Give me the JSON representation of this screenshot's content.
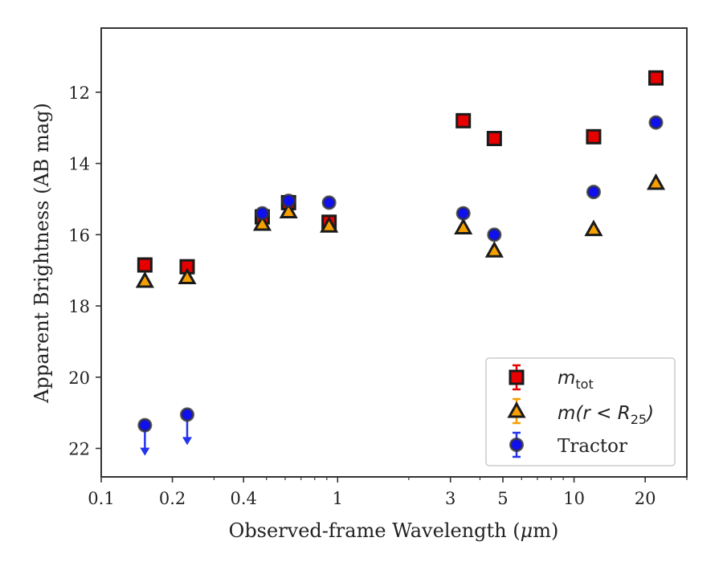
{
  "chart_data": {
    "type": "scatter",
    "title": "",
    "xlabel_main": "Observed-frame Wavelength (",
    "xlabel_mu": "μ",
    "xlabel_tail": "m)",
    "ylabel": "Apparent Brightness (AB mag)",
    "x_scale": "log",
    "xlim": [
      0.1,
      30
    ],
    "ylim": [
      22.8,
      10.2
    ],
    "y_inverted": true,
    "grid": false,
    "legend_position": "lower-right",
    "x_ticks": [
      {
        "value": 0.1,
        "label": "0.1"
      },
      {
        "value": 0.2,
        "label": "0.2"
      },
      {
        "value": 0.4,
        "label": "0.4"
      },
      {
        "value": 1,
        "label": "1"
      },
      {
        "value": 3,
        "label": "3"
      },
      {
        "value": 5,
        "label": "5"
      },
      {
        "value": 10,
        "label": "10"
      },
      {
        "value": 20,
        "label": "20"
      }
    ],
    "y_ticks": [
      {
        "value": 12,
        "label": "12"
      },
      {
        "value": 14,
        "label": "14"
      },
      {
        "value": 16,
        "label": "16"
      },
      {
        "value": 18,
        "label": "18"
      },
      {
        "value": 20,
        "label": "20"
      },
      {
        "value": 22,
        "label": "22"
      }
    ],
    "series": [
      {
        "key": "mtot",
        "legend_main": "m",
        "legend_sub": "tot",
        "marker": "square",
        "fill": "#e60000",
        "edge": "#1a1a1a",
        "points": [
          {
            "x": 0.153,
            "y": 16.85
          },
          {
            "x": 0.231,
            "y": 16.9
          },
          {
            "x": 0.48,
            "y": 15.5
          },
          {
            "x": 0.62,
            "y": 15.1
          },
          {
            "x": 0.92,
            "y": 15.65
          },
          {
            "x": 3.4,
            "y": 12.8
          },
          {
            "x": 4.6,
            "y": 13.3
          },
          {
            "x": 12.1,
            "y": 13.25
          },
          {
            "x": 22.2,
            "y": 11.6
          }
        ]
      },
      {
        "key": "mr25",
        "legend_main": "m(r < R",
        "legend_sub": "25",
        "legend_tail": ")",
        "marker": "triangle",
        "fill": "#f5a000",
        "edge": "#1a1a1a",
        "points": [
          {
            "x": 0.153,
            "y": 17.3
          },
          {
            "x": 0.231,
            "y": 17.2
          },
          {
            "x": 0.48,
            "y": 15.7
          },
          {
            "x": 0.62,
            "y": 15.35
          },
          {
            "x": 0.92,
            "y": 15.75
          },
          {
            "x": 3.4,
            "y": 15.8
          },
          {
            "x": 4.6,
            "y": 16.45
          },
          {
            "x": 12.1,
            "y": 15.85
          },
          {
            "x": 22.2,
            "y": 14.55
          }
        ]
      },
      {
        "key": "tractor",
        "legend_main": "Tractor",
        "marker": "circle",
        "fill": "#1010ee",
        "edge": "#333333",
        "points": [
          {
            "x": 0.153,
            "y": 21.35,
            "upper_limit": true
          },
          {
            "x": 0.231,
            "y": 21.05,
            "upper_limit": true
          },
          {
            "x": 0.48,
            "y": 15.4
          },
          {
            "x": 0.62,
            "y": 15.05
          },
          {
            "x": 0.92,
            "y": 15.1
          },
          {
            "x": 3.4,
            "y": 15.4
          },
          {
            "x": 4.6,
            "y": 16.0
          },
          {
            "x": 12.1,
            "y": 14.8
          },
          {
            "x": 22.2,
            "y": 12.85
          }
        ]
      }
    ]
  }
}
